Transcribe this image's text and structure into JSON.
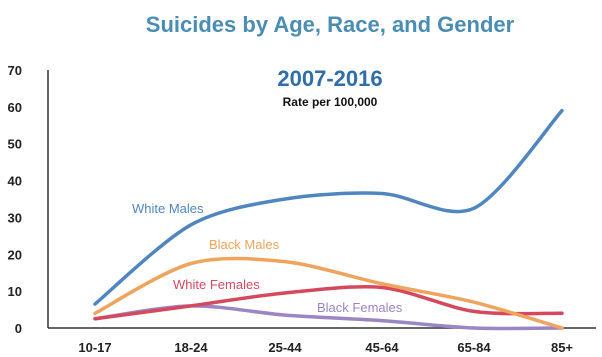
{
  "chart_data": {
    "type": "line",
    "title": "Suicides by Age, Race, and Gender",
    "subtitle": "2007-2016",
    "note": "Rate per 100,000",
    "xlabel": "",
    "ylabel": "",
    "categories": [
      "10-17",
      "18-24",
      "25-44",
      "45-64",
      "65-84",
      "85+"
    ],
    "ylim": [
      0,
      70
    ],
    "yticks": [
      0,
      10,
      20,
      30,
      40,
      50,
      60,
      70
    ],
    "grid": false,
    "legend": "inline labels",
    "series": [
      {
        "name": "White Males",
        "color": "#4f86c0",
        "values": [
          6.5,
          28,
          35,
          36.5,
          32.5,
          59
        ]
      },
      {
        "name": "Black Males",
        "color": "#f0a35c",
        "values": [
          4,
          17.5,
          18,
          12,
          7,
          0
        ]
      },
      {
        "name": "White Females",
        "color": "#d5495f",
        "values": [
          2.5,
          6,
          9.5,
          11,
          4.5,
          4
        ]
      },
      {
        "name": "Black Females",
        "color": "#9b85c5",
        "values": [
          2.5,
          6,
          3.5,
          2,
          0,
          0
        ]
      }
    ]
  }
}
